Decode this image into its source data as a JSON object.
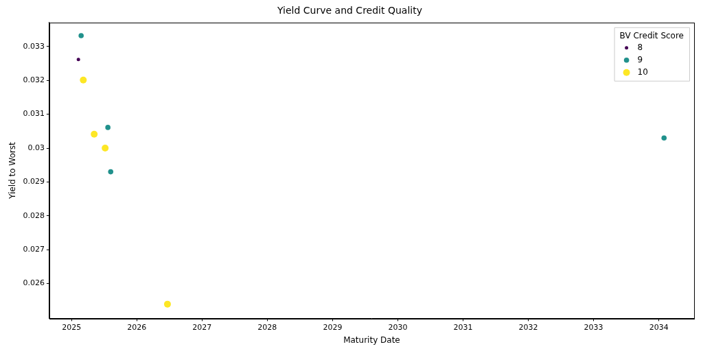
{
  "chart_data": {
    "type": "scatter",
    "title": "Yield Curve and Credit Quality",
    "x_label": "Maturity Date",
    "y_label": "Yield to Worst",
    "legend_title": "BV Credit Score",
    "legend": "upper right",
    "grid": false,
    "xlim": [
      2024.66,
      2034.54
    ],
    "xticks": [
      2025,
      2026,
      2027,
      2028,
      2029,
      2030,
      2031,
      2032,
      2033,
      2034
    ],
    "ylim": [
      0.02497,
      0.03371
    ],
    "yticks": [
      0.026,
      0.027,
      0.028,
      0.029,
      0.03,
      0.031,
      0.032,
      0.033
    ],
    "series": [
      {
        "name": "8",
        "color": "#440154",
        "marker": "circle",
        "x": [
          2025.105
        ],
        "values": [
          0.03262
        ]
      },
      {
        "name": "9",
        "color": "#21918c",
        "marker": "circle",
        "x": [
          2025.147,
          2025.557,
          2025.6,
          2034.08
        ],
        "values": [
          0.03332,
          0.03061,
          0.0293,
          0.0303
        ]
      },
      {
        "name": "10",
        "color": "#fde725",
        "marker": "circle",
        "x": [
          2025.18,
          2025.347,
          2025.515,
          2026.47
        ],
        "values": [
          0.03201,
          0.03041,
          0.03,
          0.02539
        ]
      }
    ]
  }
}
